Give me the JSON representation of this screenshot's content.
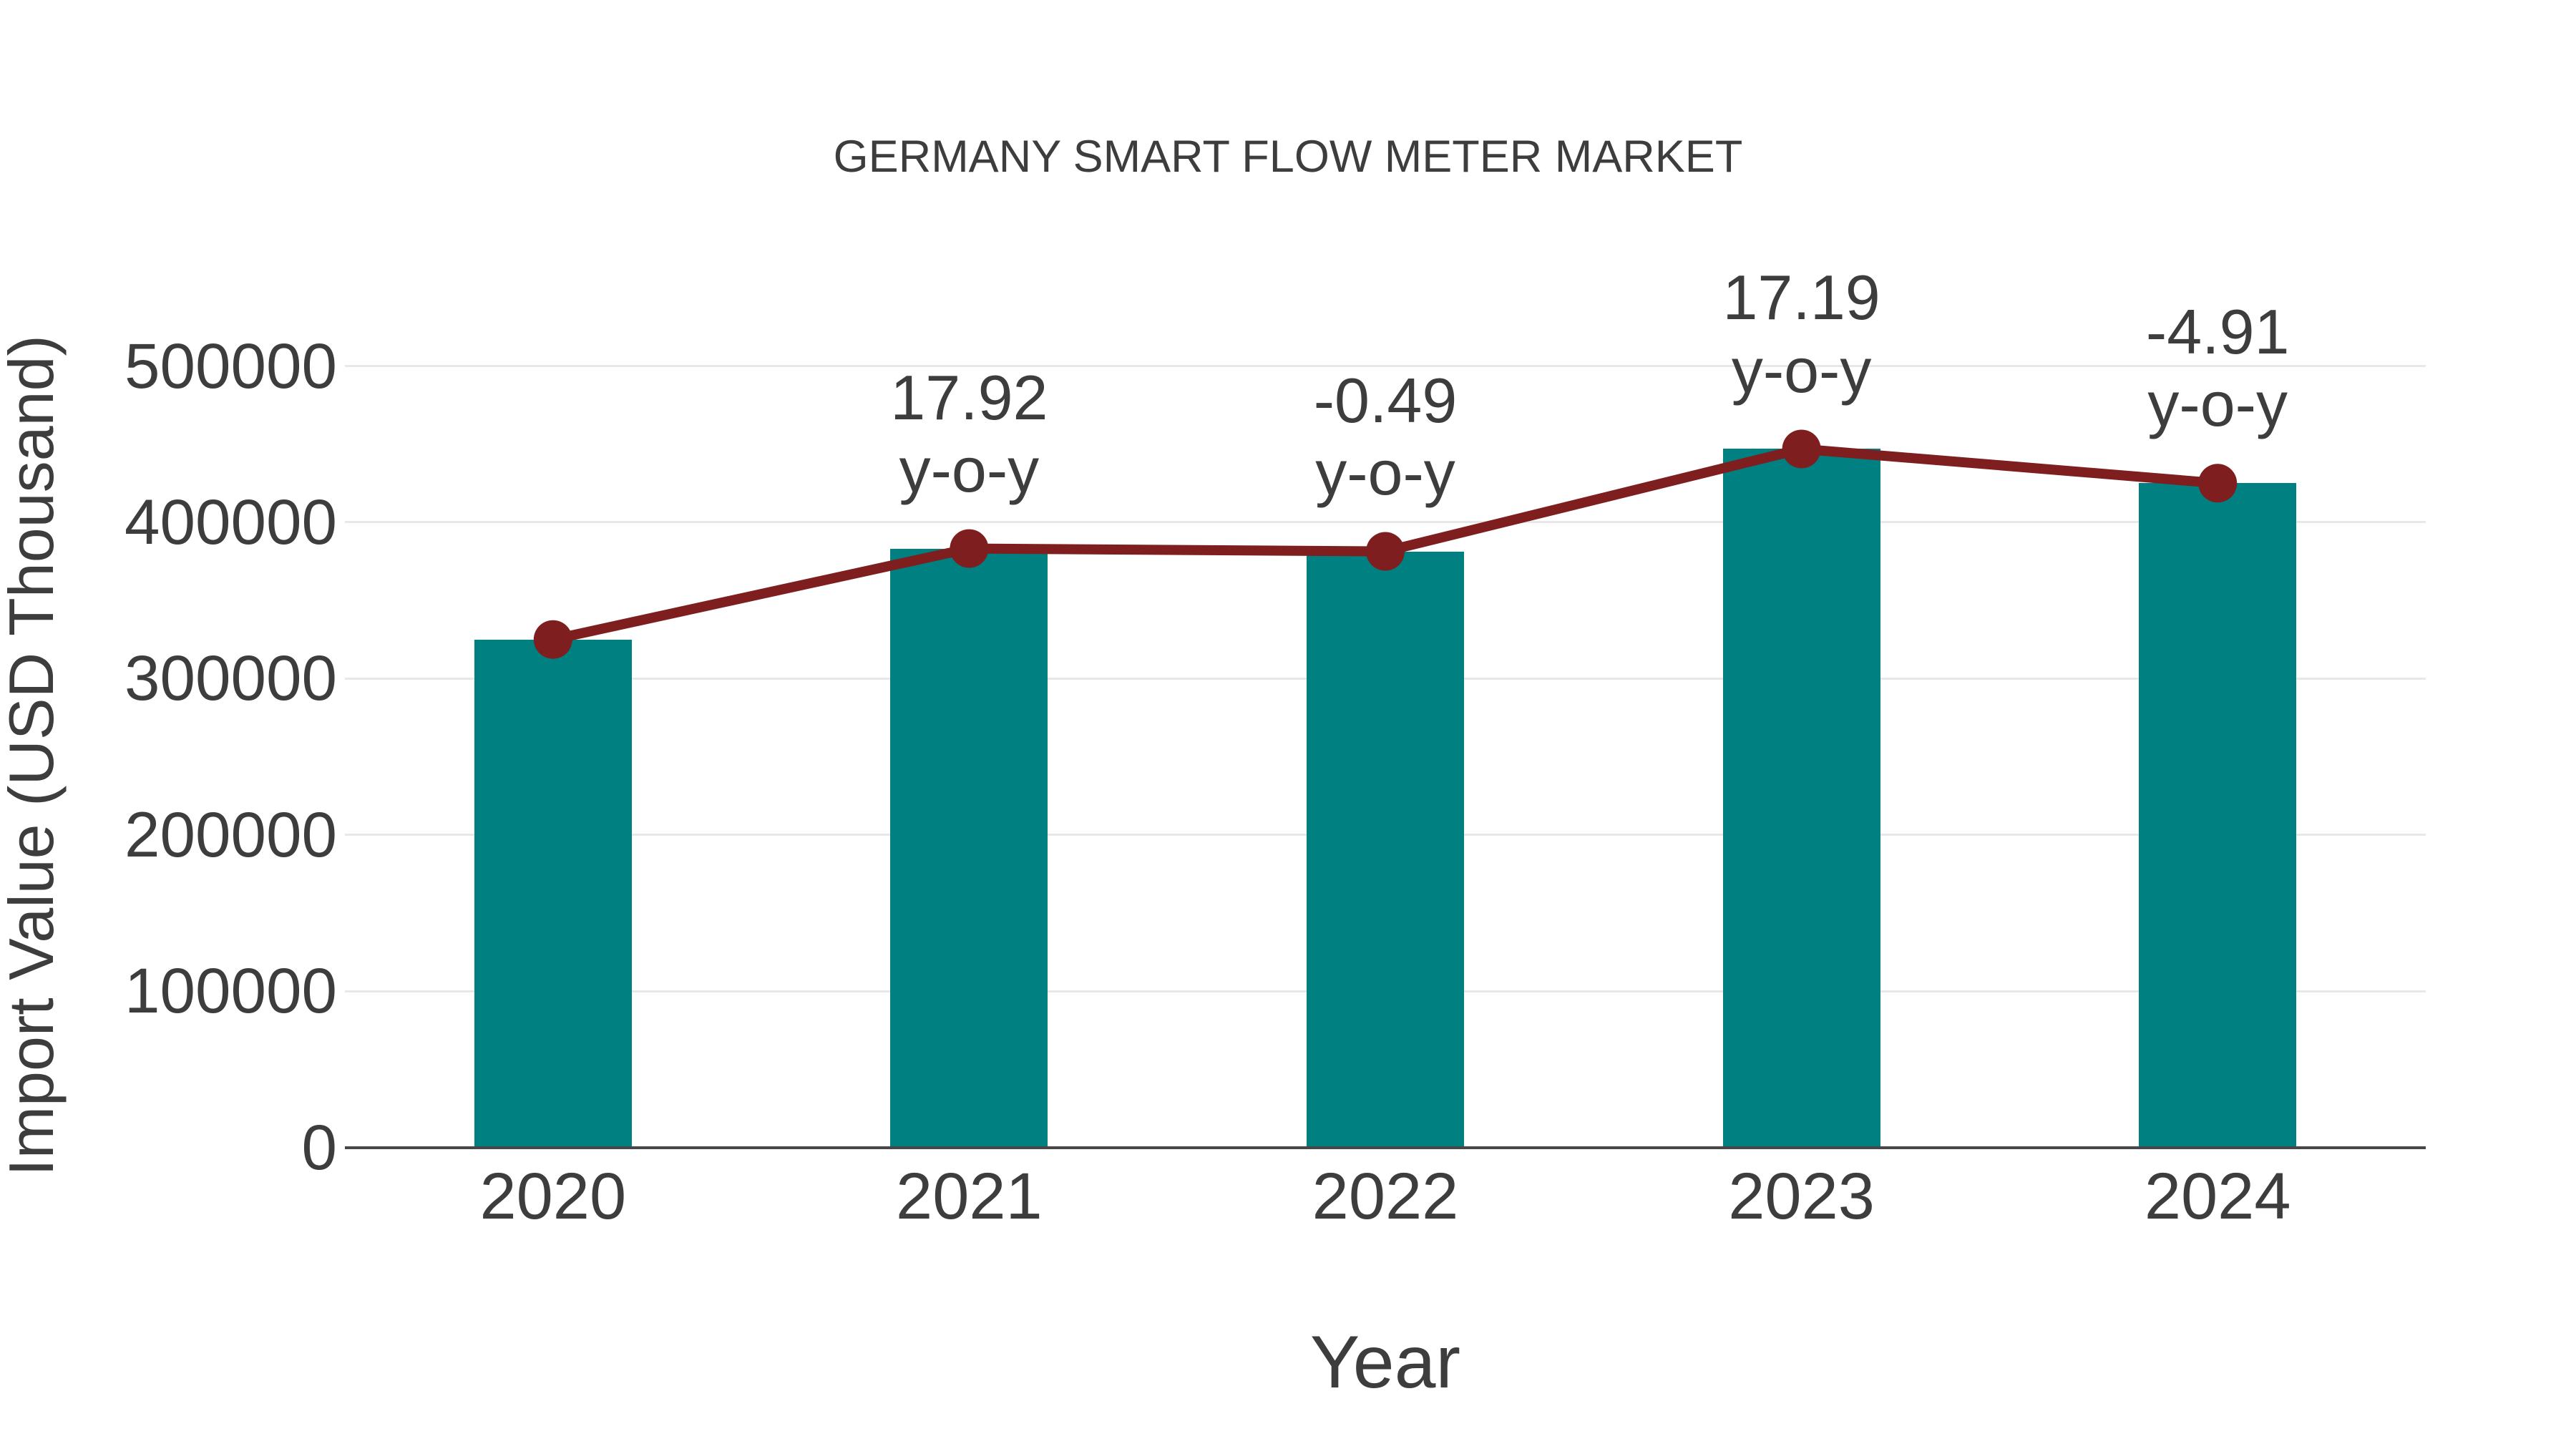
{
  "title": "GERMANY SMART FLOW METER MARKET",
  "colors": {
    "bar": "#008080",
    "line": "#7e1e1e",
    "grid": "#e8e8e8",
    "axis": "#474747",
    "text": "#3d3d3d"
  },
  "chart_data": {
    "type": "bar",
    "title": "GERMANY SMART FLOW METER MARKET",
    "xlabel": "Year",
    "ylabel": "Import Value (USD Thousand)",
    "categories": [
      "2020",
      "2021",
      "2022",
      "2023",
      "2024"
    ],
    "series": [
      {
        "name": "Import Value (USD Thousand)",
        "type": "bar",
        "color": "#008080",
        "values": [
          325000,
          383200,
          381400,
          446900,
          425000
        ]
      },
      {
        "name": "Import Value trend line",
        "type": "line",
        "color": "#7e1e1e",
        "values": [
          325000,
          383200,
          381400,
          446900,
          425000
        ]
      }
    ],
    "annotations": [
      {
        "category": "2021",
        "text": "17.92",
        "sub": "y-o-y"
      },
      {
        "category": "2022",
        "text": "-0.49",
        "sub": "y-o-y"
      },
      {
        "category": "2023",
        "text": "17.19",
        "sub": "y-o-y"
      },
      {
        "category": "2024",
        "text": "-4.91",
        "sub": "y-o-y"
      }
    ],
    "ylim": [
      0,
      500000
    ],
    "yticks": [
      0,
      100000,
      200000,
      300000,
      400000,
      500000
    ],
    "grid": "horizontal",
    "legend": "none"
  }
}
